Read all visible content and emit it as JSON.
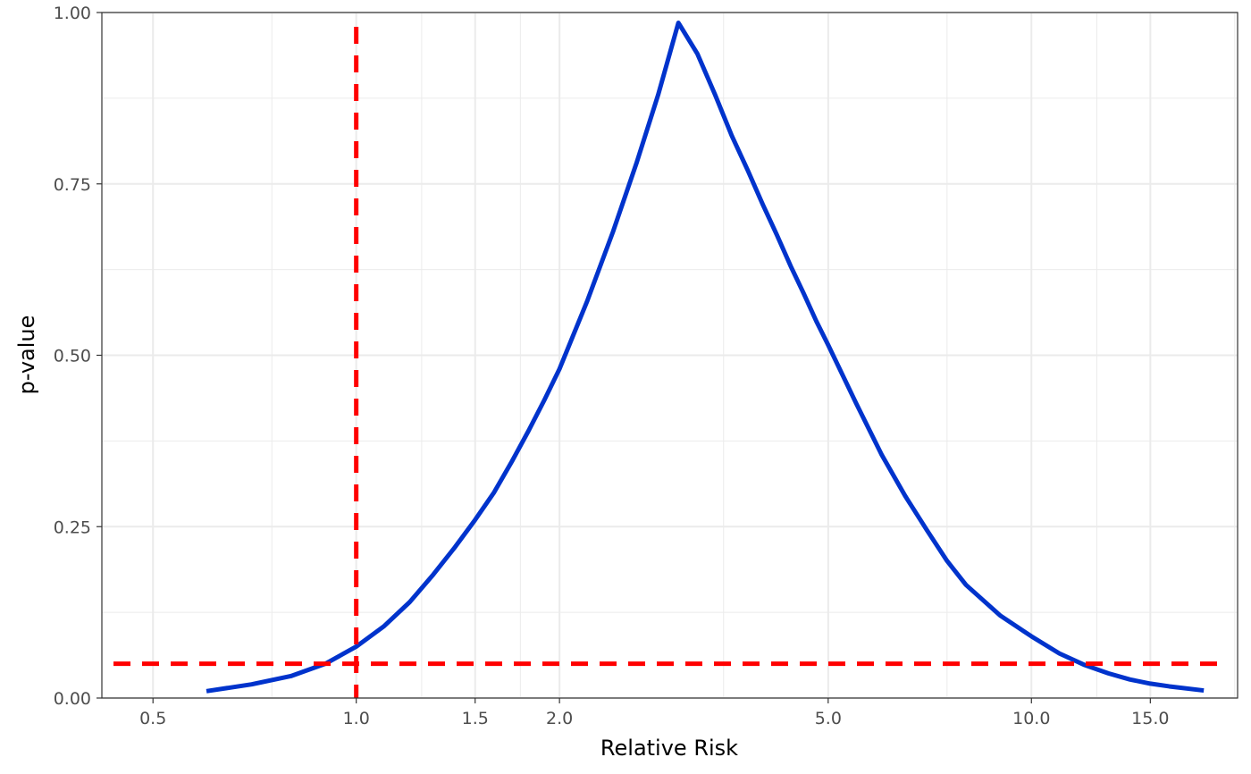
{
  "chart_data": {
    "type": "line",
    "title": "",
    "xlabel": "Relative Risk",
    "ylabel": "p-value",
    "x_scale": "log",
    "xlim": [
      0.42,
      20.2
    ],
    "ylim": [
      0,
      1
    ],
    "grid": true,
    "x_ticks": [
      {
        "value": 0.5,
        "label": "0.5"
      },
      {
        "value": 1.0,
        "label": "1.0"
      },
      {
        "value": 1.5,
        "label": "1.5"
      },
      {
        "value": 2.0,
        "label": "2.0"
      },
      {
        "value": 5.0,
        "label": "5.0"
      },
      {
        "value": 10.0,
        "label": "10.0"
      },
      {
        "value": 15.0,
        "label": "15.0"
      }
    ],
    "x_minor_gridlines": [
      0.75,
      1.25,
      1.75,
      3.5,
      7.5,
      12.5,
      20.0
    ],
    "y_ticks": [
      {
        "value": 0,
        "label": "0.00"
      },
      {
        "value": 0.25,
        "label": "0.25"
      },
      {
        "value": 0.5,
        "label": "0.50"
      },
      {
        "value": 0.75,
        "label": "0.75"
      },
      {
        "value": 1.0,
        "label": "1.00"
      }
    ],
    "y_minor_gridlines": [
      0.125,
      0.375,
      0.625,
      0.875
    ],
    "series": [
      {
        "color": "#0033cc",
        "x": [
          0.6,
          0.7,
          0.8,
          0.9,
          1.0,
          1.1,
          1.2,
          1.3,
          1.4,
          1.5,
          1.6,
          1.7,
          1.8,
          1.9,
          2.0,
          2.2,
          2.4,
          2.6,
          2.8,
          3.0,
          3.2,
          3.4,
          3.6,
          3.8,
          4.0,
          4.2,
          4.4,
          4.6,
          4.8,
          5.0,
          5.5,
          6.0,
          6.5,
          7.0,
          7.5,
          8.0,
          9.0,
          10.0,
          11.0,
          12.0,
          13.0,
          14.0,
          15.0,
          16.0,
          18.0
        ],
        "y": [
          0.01,
          0.02,
          0.032,
          0.05,
          0.075,
          0.105,
          0.14,
          0.18,
          0.22,
          0.26,
          0.3,
          0.345,
          0.39,
          0.435,
          0.48,
          0.58,
          0.68,
          0.78,
          0.88,
          0.985,
          0.94,
          0.88,
          0.82,
          0.77,
          0.72,
          0.675,
          0.63,
          0.59,
          0.55,
          0.515,
          0.43,
          0.355,
          0.295,
          0.245,
          0.2,
          0.165,
          0.12,
          0.09,
          0.065,
          0.048,
          0.036,
          0.027,
          0.021,
          0.017,
          0.011
        ]
      }
    ],
    "reference_lines": [
      {
        "orientation": "vertical",
        "value": 1.0,
        "color": "#ff0000",
        "style": "dashed"
      },
      {
        "orientation": "horizontal",
        "value": 0.05,
        "color": "#ff0000",
        "style": "dashed"
      }
    ]
  }
}
